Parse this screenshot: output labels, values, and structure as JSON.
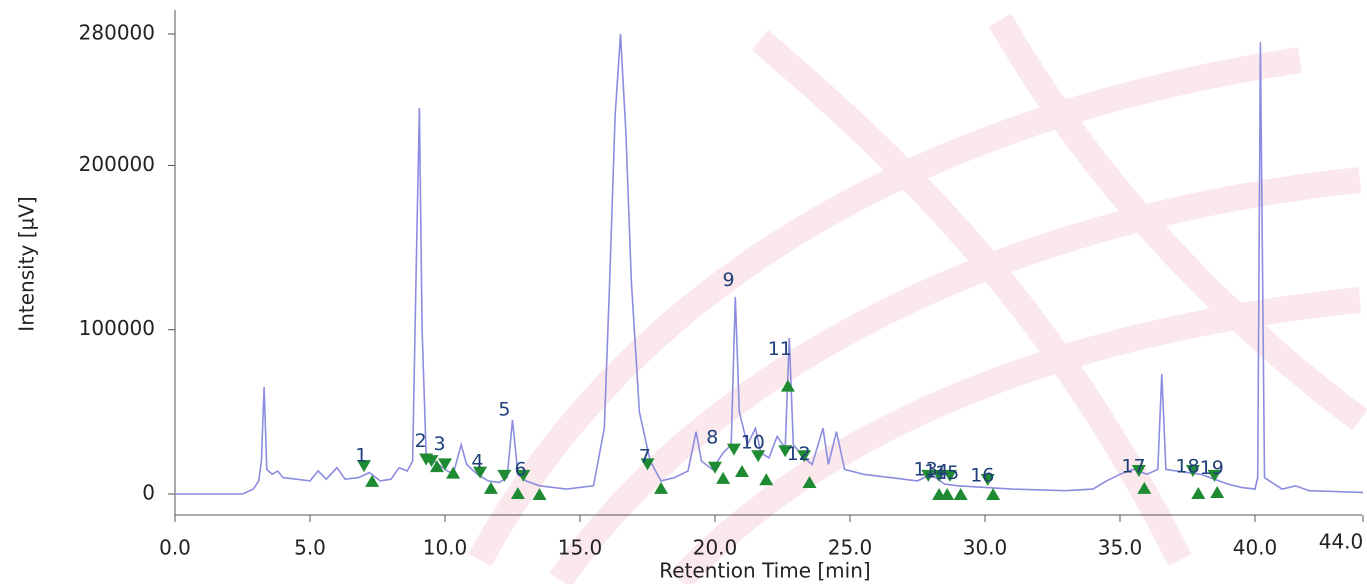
{
  "chart_data": {
    "type": "line",
    "xlabel": "Retention Time [min]",
    "ylabel": "Intensity [µV]",
    "color": "#8c8ce0",
    "xlim": [
      0,
      44
    ],
    "ylim": [
      -8000,
      290000
    ],
    "xticks": [
      {
        "value": 0,
        "label": "0.0"
      },
      {
        "value": 5,
        "label": "5.0"
      },
      {
        "value": 10,
        "label": "10.0"
      },
      {
        "value": 15,
        "label": "15.0"
      },
      {
        "value": 20,
        "label": "20.0"
      },
      {
        "value": 25,
        "label": "25.0"
      },
      {
        "value": 30,
        "label": "30.0"
      },
      {
        "value": 35,
        "label": "35.0"
      },
      {
        "value": 40,
        "label": "40.0"
      },
      {
        "value": 44,
        "label": "44.0"
      }
    ],
    "yticks": [
      0,
      100000,
      200000,
      280000
    ],
    "x": [
      0,
      2.5,
      2.9,
      3.1,
      3.2,
      3.3,
      3.4,
      3.6,
      3.8,
      4.0,
      4.5,
      5.0,
      5.3,
      5.6,
      6.0,
      6.3,
      6.8,
      7.2,
      7.6,
      8.0,
      8.3,
      8.6,
      8.8,
      8.95,
      9.05,
      9.15,
      9.3,
      9.6,
      10.0,
      10.3,
      10.6,
      10.8,
      11.2,
      11.6,
      12.0,
      12.3,
      12.5,
      12.7,
      13.0,
      13.5,
      14.5,
      15.5,
      15.9,
      16.1,
      16.3,
      16.5,
      16.7,
      16.9,
      17.2,
      17.6,
      18.0,
      18.5,
      19.0,
      19.3,
      19.5,
      19.9,
      20.3,
      20.6,
      20.75,
      20.9,
      21.2,
      21.5,
      21.7,
      22.0,
      22.3,
      22.6,
      22.75,
      22.9,
      23.3,
      23.6,
      24.0,
      24.2,
      24.5,
      24.8,
      25.5,
      26.5,
      27.5,
      28.0,
      28.5,
      29.0,
      30.0,
      31.0,
      33.0,
      34.0,
      34.5,
      35.0,
      35.5,
      36.0,
      36.4,
      36.55,
      36.7,
      37.5,
      38.0,
      38.5,
      39.0,
      39.5,
      40.0,
      40.1,
      40.2,
      40.35,
      41.0,
      41.5,
      42.0,
      44.0
    ],
    "values": [
      0,
      0,
      3000,
      8000,
      20000,
      65000,
      15000,
      12000,
      14000,
      10000,
      9000,
      8000,
      14000,
      9000,
      16000,
      9000,
      10000,
      13000,
      8000,
      9000,
      16000,
      14000,
      20000,
      150000,
      235000,
      100000,
      25000,
      20000,
      15000,
      12000,
      30000,
      18000,
      12000,
      8000,
      7000,
      10000,
      45000,
      12000,
      8000,
      5000,
      3000,
      5000,
      40000,
      130000,
      230000,
      280000,
      220000,
      130000,
      50000,
      20000,
      8000,
      10000,
      14000,
      38000,
      20000,
      15000,
      25000,
      30000,
      120000,
      50000,
      30000,
      40000,
      25000,
      22000,
      35000,
      28000,
      95000,
      30000,
      22000,
      18000,
      40000,
      18000,
      38000,
      15000,
      12000,
      10000,
      8000,
      12000,
      6000,
      5000,
      4000,
      3000,
      2000,
      3000,
      8000,
      12000,
      15000,
      12000,
      15000,
      73000,
      15000,
      13000,
      12000,
      9000,
      6000,
      4000,
      3000,
      10000,
      275000,
      10000,
      3000,
      5000,
      2000,
      1000
    ],
    "peak_labels": [
      {
        "text": "1",
        "x": 6.9,
        "y": 23000
      },
      {
        "text": "2",
        "x": 9.1,
        "y": 32000
      },
      {
        "text": "3",
        "x": 9.8,
        "y": 30000
      },
      {
        "text": "4",
        "x": 11.2,
        "y": 19500
      },
      {
        "text": "5",
        "x": 12.2,
        "y": 51000
      },
      {
        "text": "6",
        "x": 12.8,
        "y": 14600
      },
      {
        "text": "7",
        "x": 17.4,
        "y": 22500
      },
      {
        "text": "8",
        "x": 19.9,
        "y": 34000
      },
      {
        "text": "9",
        "x": 20.5,
        "y": 130000
      },
      {
        "text": "10",
        "x": 21.4,
        "y": 31000
      },
      {
        "text": "11",
        "x": 22.4,
        "y": 88000
      },
      {
        "text": "12",
        "x": 23.1,
        "y": 24000
      },
      {
        "text": "13",
        "x": 27.8,
        "y": 14600
      },
      {
        "text": "14",
        "x": 28.2,
        "y": 13500
      },
      {
        "text": "15",
        "x": 28.6,
        "y": 12500
      },
      {
        "text": "16",
        "x": 29.9,
        "y": 11000
      },
      {
        "text": "17",
        "x": 35.5,
        "y": 16500
      },
      {
        "text": "18",
        "x": 37.5,
        "y": 16500
      },
      {
        "text": "19",
        "x": 38.4,
        "y": 15500
      }
    ],
    "markers": {
      "down": {
        "x": [
          7.0,
          9.3,
          9.5,
          10.0,
          11.3,
          12.2,
          12.9,
          17.5,
          20.0,
          20.7,
          21.6,
          22.6,
          23.3,
          27.9,
          28.3,
          28.7,
          30.1,
          35.7,
          37.7,
          38.5
        ],
        "y": [
          17000,
          21000,
          20000,
          18000,
          13000,
          11000,
          11000,
          18000,
          16000,
          27000,
          23000,
          26000,
          23000,
          11000,
          11000,
          11000,
          8500,
          14000,
          14000,
          11000
        ]
      },
      "up": {
        "x": [
          7.3,
          9.7,
          10.3,
          11.7,
          12.7,
          13.5,
          18.0,
          20.3,
          21.0,
          21.9,
          22.7,
          23.5,
          28.3,
          28.6,
          29.1,
          30.3,
          35.9,
          37.9,
          38.6
        ],
        "y": [
          8000,
          17000,
          13000,
          3700,
          600,
          0,
          3700,
          9800,
          14000,
          9000,
          66000,
          7300,
          0,
          0,
          0,
          0,
          3700,
          600,
          1200
        ]
      }
    }
  }
}
